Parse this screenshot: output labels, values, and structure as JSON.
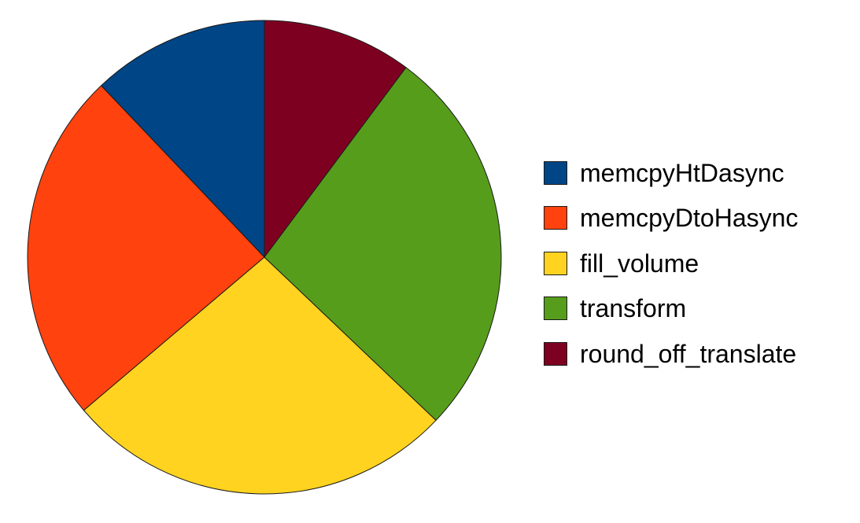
{
  "chart_data": {
    "type": "pie",
    "title": "",
    "categories": [
      "memcpyHtDasync",
      "memcpyDtoHasync",
      "fill_volume",
      "transform",
      "round_off_translate"
    ],
    "values": [
      12.1,
      24.1,
      26.7,
      26.9,
      10.2
    ],
    "colors": [
      "#004586",
      "#ff420e",
      "#ffd320",
      "#579d1c",
      "#7e0021"
    ],
    "start": "12 o'clock",
    "direction": "counterclockwise",
    "legend": "right"
  }
}
